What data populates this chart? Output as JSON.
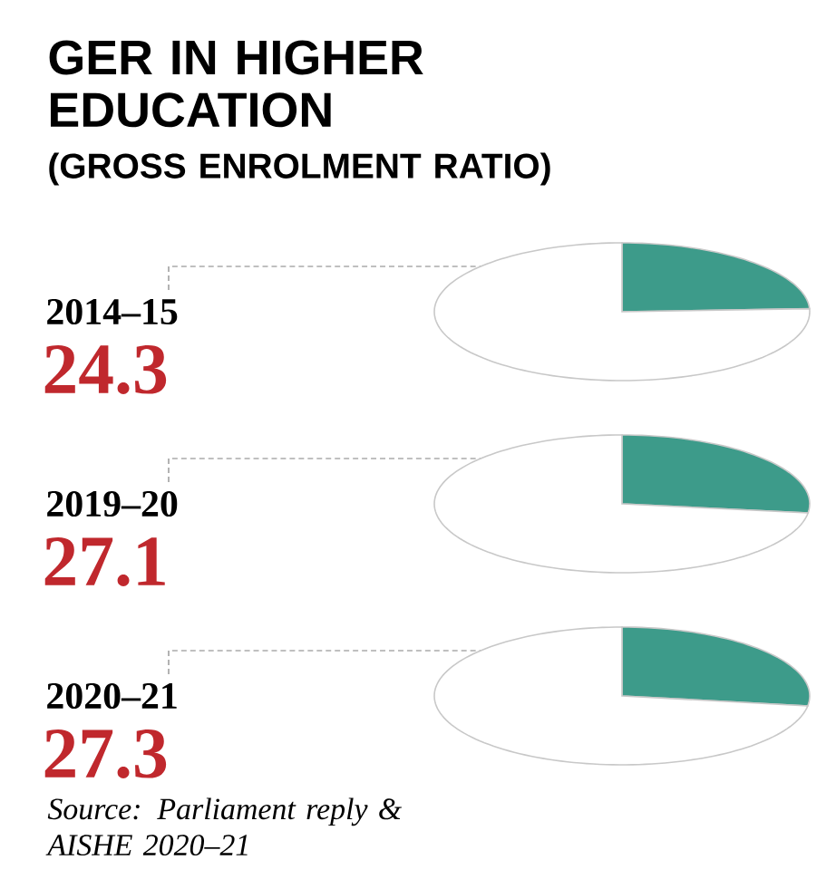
{
  "chart_data": [
    {
      "type": "other",
      "title": "GER IN HIGHER EDUCATION",
      "subtitle": "(GROSS ENROLMENT RATIO)"
    },
    {
      "type": "pie",
      "title": "2014–15",
      "categories": [
        null,
        null
      ],
      "values": [
        24.3,
        75.7
      ],
      "colors": [
        "#3d9b8a",
        "#ffffff"
      ],
      "value_labels": [
        "24.3",
        null
      ]
    },
    {
      "type": "pie",
      "title": "2019–20",
      "categories": [
        null,
        null
      ],
      "values": [
        27.1,
        72.9
      ],
      "colors": [
        "#3d9b8a",
        "#ffffff"
      ],
      "value_labels": [
        "27.1",
        null
      ]
    },
    {
      "type": "pie",
      "title": "2020–21",
      "categories": [
        null,
        null
      ],
      "values": [
        27.3,
        72.7
      ],
      "colors": [
        "#3d9b8a",
        "#ffffff"
      ],
      "value_labels": [
        "27.3",
        null
      ],
      "annotations": [
        "Source: Parliament reply & AISHE 2020–21"
      ]
    }
  ]
}
